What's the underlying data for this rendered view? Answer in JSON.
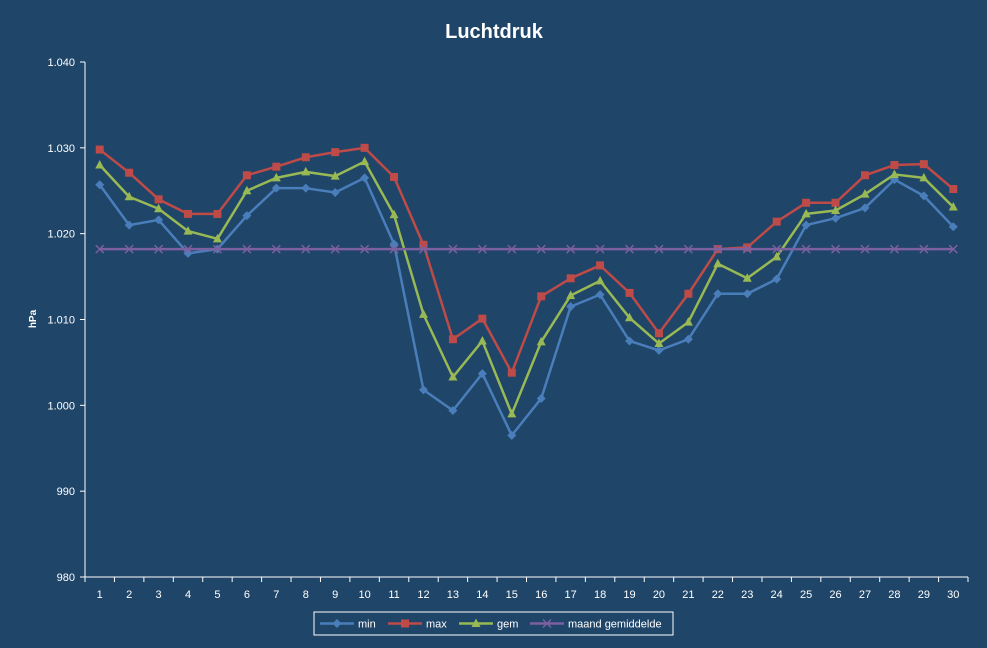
{
  "chart_data": {
    "type": "line",
    "title": "Luchtdruk",
    "ylabel": "hPa",
    "xlabel": "",
    "ylim": [
      980,
      1040
    ],
    "y_ticks": [
      "980",
      "990",
      "1.000",
      "1.010",
      "1.020",
      "1.030",
      "1.040"
    ],
    "y_tick_values": [
      980,
      990,
      1000,
      1010,
      1020,
      1030,
      1040
    ],
    "categories": [
      "1",
      "2",
      "3",
      "4",
      "5",
      "6",
      "7",
      "8",
      "9",
      "10",
      "11",
      "12",
      "13",
      "14",
      "15",
      "16",
      "17",
      "18",
      "19",
      "20",
      "21",
      "22",
      "23",
      "24",
      "25",
      "26",
      "27",
      "28",
      "29",
      "30"
    ],
    "grid": false,
    "legend_position": "bottom",
    "series": [
      {
        "name": "min",
        "color": "#4a7ebb",
        "marker": "diamond",
        "values": [
          1025.7,
          1021.0,
          1021.6,
          1017.7,
          1018.2,
          1022.1,
          1025.3,
          1025.3,
          1024.8,
          1026.5,
          1018.8,
          1001.8,
          999.4,
          1003.7,
          996.5,
          1000.8,
          1011.5,
          1012.9,
          1007.5,
          1006.4,
          1007.7,
          1013.0,
          1013.0,
          1014.7,
          1021.0,
          1021.8,
          1023.0,
          1026.3,
          1024.4,
          1020.8
        ]
      },
      {
        "name": "max",
        "color": "#be4b48",
        "marker": "square",
        "values": [
          1029.8,
          1027.1,
          1024.0,
          1022.3,
          1022.3,
          1026.8,
          1027.8,
          1028.9,
          1029.5,
          1030.0,
          1026.6,
          1018.7,
          1007.7,
          1010.1,
          1003.8,
          1012.7,
          1014.8,
          1016.3,
          1013.1,
          1008.4,
          1013.0,
          1018.2,
          1018.4,
          1021.4,
          1023.6,
          1023.6,
          1026.8,
          1028.0,
          1028.1,
          1025.2
        ]
      },
      {
        "name": "gem",
        "color": "#98b954",
        "marker": "triangle",
        "values": [
          1028.0,
          1024.3,
          1022.9,
          1020.3,
          1019.4,
          1025.0,
          1026.5,
          1027.2,
          1026.7,
          1028.4,
          1022.2,
          1010.6,
          1003.3,
          1007.5,
          999.0,
          1007.4,
          1012.8,
          1014.5,
          1010.2,
          1007.2,
          1009.7,
          1016.5,
          1014.8,
          1017.3,
          1022.3,
          1022.7,
          1024.6,
          1026.9,
          1026.5,
          1023.1
        ]
      },
      {
        "name": "maand gemiddelde",
        "color": "#7d60a0",
        "marker": "x",
        "values": [
          1018.2,
          1018.2,
          1018.2,
          1018.2,
          1018.2,
          1018.2,
          1018.2,
          1018.2,
          1018.2,
          1018.2,
          1018.2,
          1018.2,
          1018.2,
          1018.2,
          1018.2,
          1018.2,
          1018.2,
          1018.2,
          1018.2,
          1018.2,
          1018.2,
          1018.2,
          1018.2,
          1018.2,
          1018.2,
          1018.2,
          1018.2,
          1018.2,
          1018.2,
          1018.2
        ]
      }
    ]
  }
}
